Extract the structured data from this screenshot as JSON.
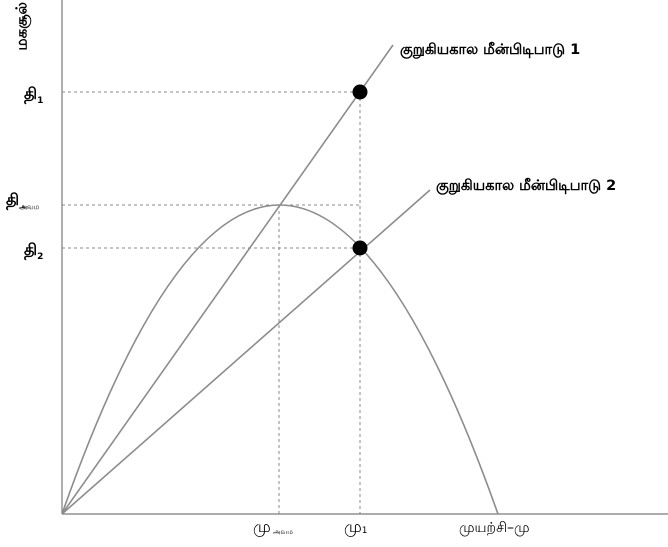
{
  "yaxis": {
    "label": "மகசூல்"
  },
  "xaxis": {
    "label": "முயற்சி–மு"
  },
  "lines": [
    {
      "label": "குறுகியகால மீன்பிடிபாடு 1"
    },
    {
      "label": "குறுகியகால மீன்பிடிபாடு 2"
    }
  ],
  "y_ticks": {
    "t1": {
      "base": "தி",
      "sub": "1"
    },
    "tmax": {
      "base": "தி",
      "sub": "அவம"
    },
    "t2": {
      "base": "தி",
      "sub": "2"
    }
  },
  "x_ticks": {
    "mmax": {
      "base": "மு",
      "sub": "அவம"
    },
    "m1": {
      "base": "மு",
      "sub": "1"
    }
  }
}
